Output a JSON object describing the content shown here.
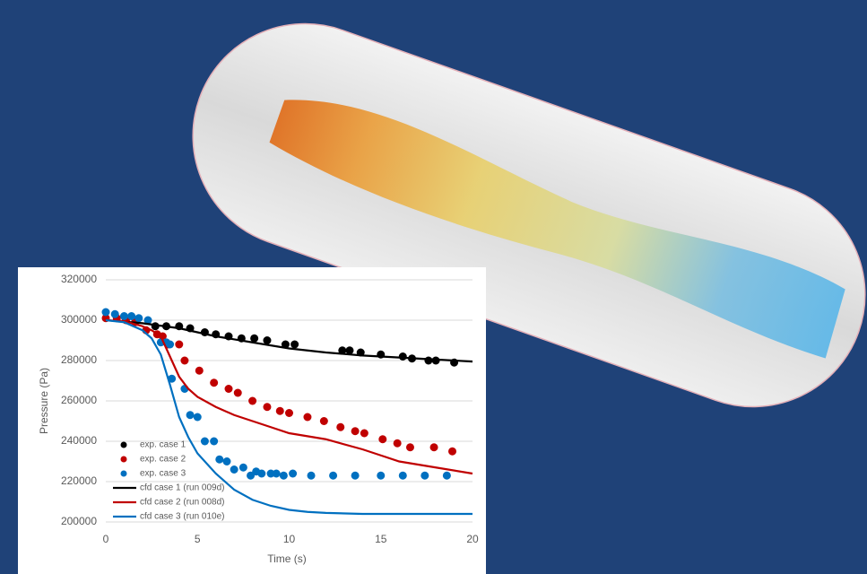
{
  "chart_data": {
    "type": "line",
    "xlabel": "Time (s)",
    "ylabel": "Pressure (Pa)",
    "xlim": [
      0,
      20
    ],
    "xticks": [
      0,
      5,
      10,
      15,
      20
    ],
    "ylim": [
      200000,
      320000
    ],
    "yticks": [
      200000,
      220000,
      240000,
      260000,
      280000,
      300000,
      320000
    ],
    "grid": true,
    "legend": "lower left",
    "series": [
      {
        "name": "exp. case 1",
        "color": "#000000",
        "style": "dots",
        "x": [
          2.7,
          3.3,
          4,
          4.6,
          5.4,
          6,
          6.7,
          7.4,
          8.1,
          8.8,
          9.8,
          10.3,
          12.9,
          13.3,
          13.9,
          15,
          16.2,
          16.7,
          17.6,
          18,
          19
        ],
        "values": [
          297000,
          297000,
          297000,
          296000,
          294000,
          293000,
          292000,
          291000,
          291000,
          290000,
          288000,
          288000,
          285000,
          285000,
          284000,
          283000,
          282000,
          281000,
          280000,
          280000,
          279000
        ]
      },
      {
        "name": "exp. case 2",
        "color": "#c00000",
        "style": "dots",
        "x": [
          0,
          0.6,
          1.1,
          1.6,
          2.2,
          2.8,
          3.1,
          3.4,
          4,
          4.3,
          5.1,
          5.9,
          6.7,
          7.2,
          8,
          8.8,
          9.5,
          10,
          11,
          11.9,
          12.8,
          13.6,
          14.1,
          15.1,
          15.9,
          16.6,
          17.9,
          18.9
        ],
        "values": [
          301000,
          301000,
          300000,
          299000,
          295000,
          293000,
          292000,
          288000,
          288000,
          280000,
          275000,
          269000,
          266000,
          264000,
          260000,
          257000,
          255000,
          254000,
          252000,
          250000,
          247000,
          245000,
          244000,
          241000,
          239000,
          237000,
          237000,
          235000
        ]
      },
      {
        "name": "exp. case 3",
        "color": "#0070c0",
        "style": "dots",
        "x": [
          0,
          0.5,
          1,
          1.4,
          1.8,
          2.3,
          3,
          3.3,
          3.5,
          3.6,
          4.3,
          4.6,
          5,
          5.4,
          5.9,
          6.2,
          6.6,
          7,
          7.5,
          7.9,
          8.2,
          8.5,
          9,
          9.3,
          9.7,
          10.2,
          11.2,
          12.4,
          13.6,
          15,
          16.2,
          17.4,
          18.6
        ],
        "values": [
          304000,
          303000,
          302000,
          302000,
          301000,
          300000,
          289000,
          289000,
          288000,
          271000,
          266000,
          253000,
          252000,
          240000,
          240000,
          231000,
          230000,
          226000,
          227000,
          223000,
          225000,
          224000,
          224000,
          224000,
          223000,
          224000,
          223000,
          223000,
          223000,
          223000,
          223000,
          223000,
          223000
        ]
      },
      {
        "name": "cfd case 1 (run 009d)",
        "color": "#000000",
        "style": "line",
        "x": [
          0,
          2,
          4,
          6,
          8,
          10,
          12,
          14,
          16,
          18,
          20
        ],
        "values": [
          300000,
          298500,
          296000,
          292000,
          289000,
          286000,
          284000,
          282500,
          281500,
          280500,
          279500
        ]
      },
      {
        "name": "cfd case 2 (run 008d)",
        "color": "#c00000",
        "style": "line",
        "x": [
          0,
          1,
          2,
          2.5,
          3,
          3.5,
          4,
          4.5,
          5,
          6,
          7,
          8,
          9,
          10,
          12,
          14,
          15,
          16,
          18,
          20
        ],
        "values": [
          300000,
          299500,
          297000,
          295000,
          292000,
          282000,
          272000,
          266000,
          262000,
          257000,
          253000,
          250000,
          247000,
          244000,
          241000,
          236000,
          233000,
          230000,
          227000,
          224000
        ]
      },
      {
        "name": "cfd case 3 (run 010e)",
        "color": "#0070c0",
        "style": "line",
        "x": [
          0,
          1,
          2,
          2.5,
          3,
          3.5,
          4,
          4.5,
          5,
          6,
          7,
          8,
          9,
          10,
          11,
          12,
          14,
          20
        ],
        "values": [
          300000,
          299000,
          295000,
          291000,
          283000,
          268000,
          252000,
          242000,
          234000,
          224000,
          216000,
          211000,
          208000,
          206000,
          205000,
          204500,
          204000,
          204000
        ]
      }
    ]
  }
}
